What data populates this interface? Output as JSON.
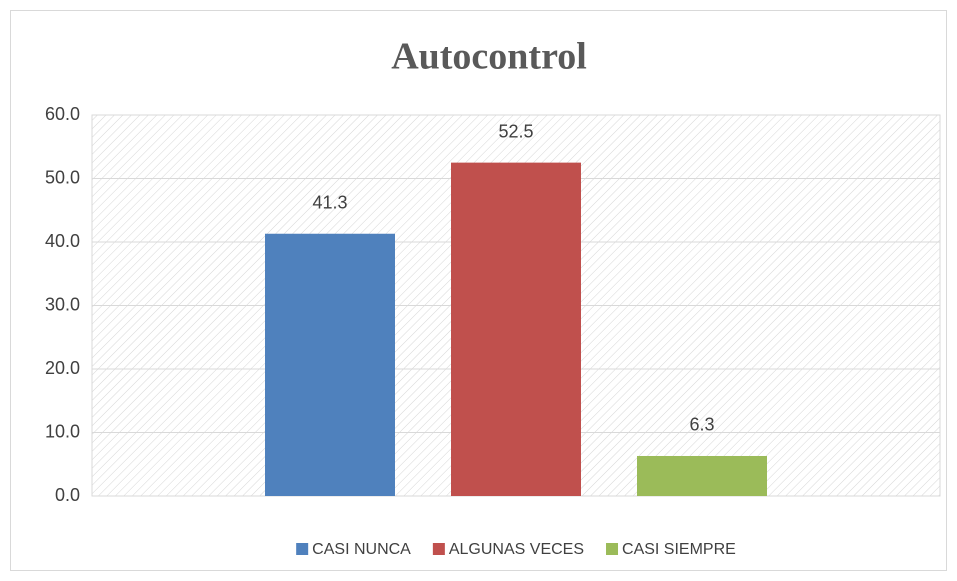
{
  "chart_data": {
    "type": "bar",
    "title": "Autocontrol",
    "series": [
      {
        "name": "CASI NUNCA",
        "color": "#4f81bd",
        "values": [
          41.3
        ]
      },
      {
        "name": "ALGUNAS VECES",
        "color": "#c0504d",
        "values": [
          52.5
        ]
      },
      {
        "name": "CASI SIEMPRE",
        "color": "#9bbb59",
        "values": [
          6.3
        ]
      }
    ],
    "ylim": [
      0,
      60
    ],
    "yticks": [
      {
        "value": 0,
        "label": "0.0"
      },
      {
        "value": 10,
        "label": "10.0"
      },
      {
        "value": 20,
        "label": "20.0"
      },
      {
        "value": 30,
        "label": "30.0"
      },
      {
        "value": 40,
        "label": "40.0"
      },
      {
        "value": 50,
        "label": "50.0"
      },
      {
        "value": 60,
        "label": "60.0"
      }
    ],
    "grid": true,
    "legend": "bottom"
  }
}
